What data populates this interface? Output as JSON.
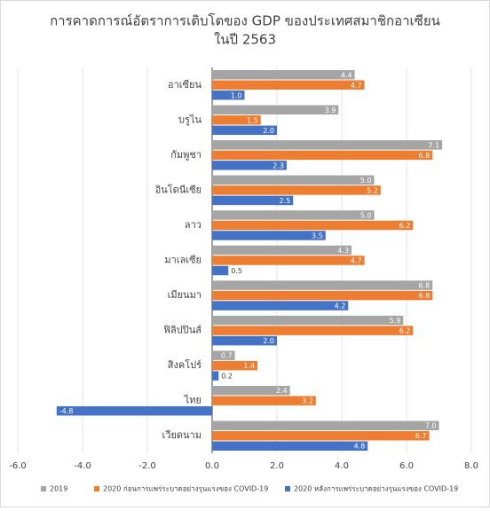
{
  "chart_data": {
    "type": "bar",
    "orientation": "horizontal",
    "title": "การคาดการณ์อัตราการเติบโตของ  GDP ของประเทศสมาชิกอาเซียน",
    "subtitle": "ในปี 2563",
    "categories": [
      "อาเซียน",
      "บรูไน",
      "กัมพูชา",
      "อินโดนีเซีย",
      "ลาว",
      "มาเลเซีย",
      "เมียนมา",
      "ฟิลิปปินส์",
      "สิงคโปร์",
      "ไทย",
      "เวียดนาม"
    ],
    "series": [
      {
        "name": "2019",
        "color": "#a5a5a5",
        "values": [
          4.4,
          3.9,
          7.1,
          5.0,
          5.0,
          4.3,
          6.8,
          5.9,
          0.7,
          2.4,
          7.0
        ],
        "value_labels": [
          "4.4",
          "3.9",
          "7.1",
          "5.0",
          "5.0",
          "4.3",
          "6.8",
          "5.9",
          "0.7",
          "2.4",
          "7.0"
        ]
      },
      {
        "name": "2020 ก่อนการแพร่ระบาดอย่างรุนแรงของ  COVID-19",
        "color": "#ed7d31",
        "values": [
          4.7,
          1.5,
          6.8,
          5.2,
          6.2,
          4.7,
          6.8,
          6.2,
          1.4,
          3.2,
          6.7
        ],
        "value_labels": [
          "4.7",
          "1.5",
          "6.8",
          "5.2",
          "6.2",
          "4.7",
          "6.8",
          "6.2",
          "1.4",
          "3.2",
          "6.7"
        ]
      },
      {
        "name": "2020 หลังการแพร่ระบาดอย่างรุนแรงของ  COVID-19",
        "color": "#4472c4",
        "values": [
          1.0,
          2.0,
          2.3,
          2.5,
          3.5,
          0.5,
          4.2,
          2.0,
          0.2,
          -4.8,
          4.8
        ],
        "value_labels": [
          "1.0",
          "2.0",
          "2.3",
          "2.5",
          "3.5",
          "0.5",
          "4.2",
          "2.0",
          "0.2",
          "-4.8",
          "4.8"
        ]
      }
    ],
    "xlim": [
      -6,
      8
    ],
    "xticks": [
      {
        "value": -6,
        "label": "-6.0"
      },
      {
        "value": -4,
        "label": "-4.0"
      },
      {
        "value": -2,
        "label": "-2.0"
      },
      {
        "value": 0,
        "label": "0.0"
      },
      {
        "value": 2,
        "label": "2.0"
      },
      {
        "value": 4,
        "label": "4.0"
      },
      {
        "value": 6,
        "label": "6.0"
      },
      {
        "value": 8,
        "label": "8.0"
      }
    ],
    "grid": true,
    "legend": "bottom"
  }
}
